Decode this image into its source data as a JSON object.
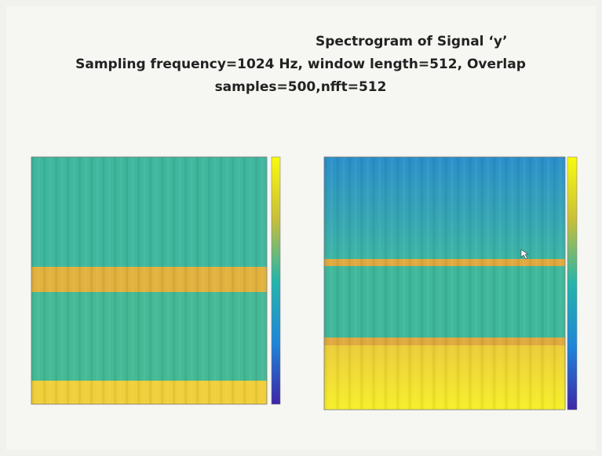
{
  "slide": {
    "title_lines": [
      "Spectrogram  of Signal ‘y’",
      "Sampling frequency=1024 Hz, window length=512, Overlap",
      "samples=500,nfft=512"
    ]
  }
}
